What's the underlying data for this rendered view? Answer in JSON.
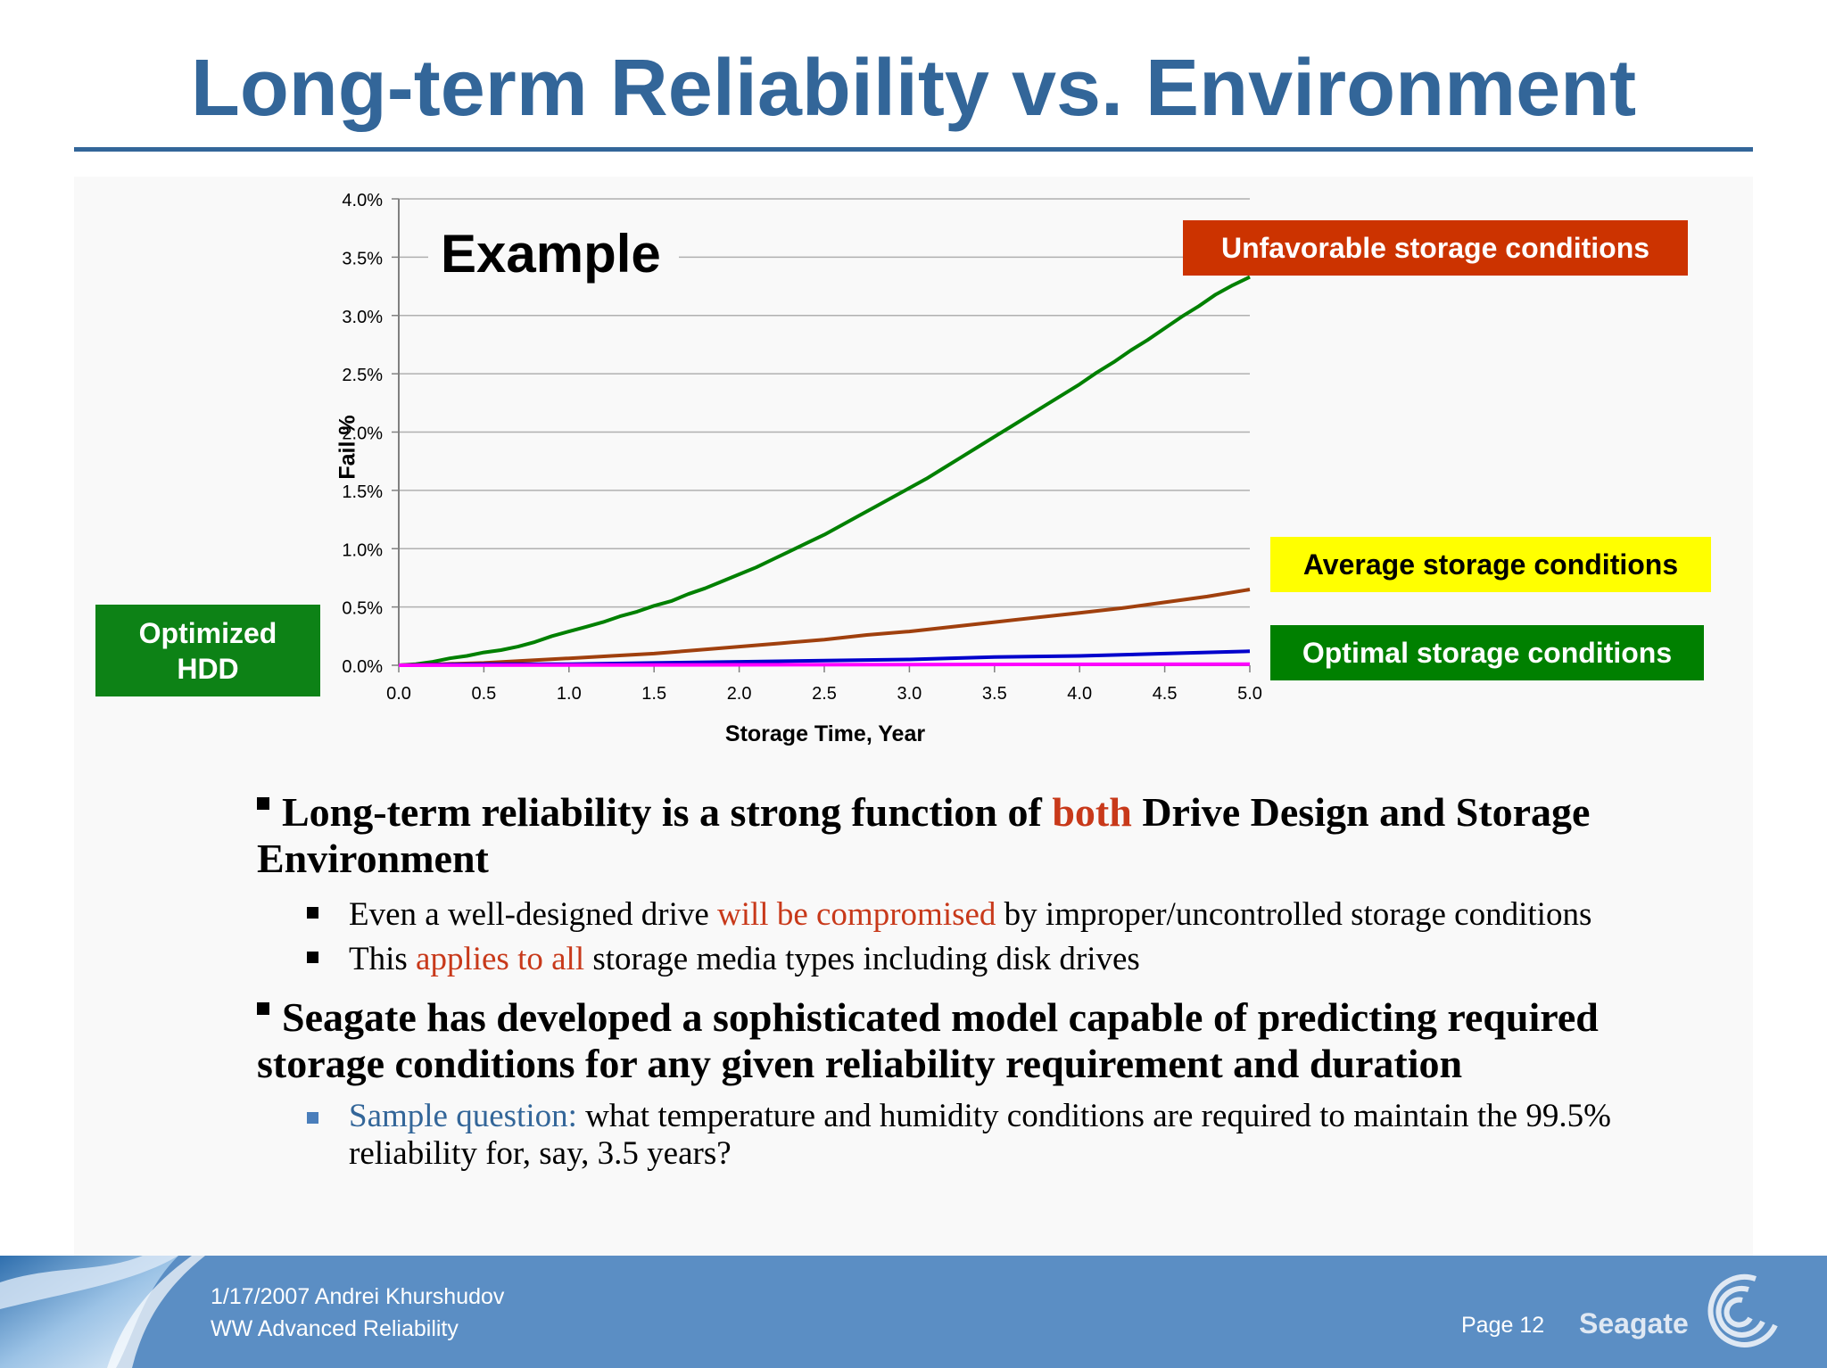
{
  "title": "Long-term Reliability vs. Environment",
  "chart_data": {
    "type": "line",
    "title": "",
    "xlabel": "Storage Time, Year",
    "ylabel": "Fail %",
    "xlim": [
      0,
      5
    ],
    "ylim": [
      0,
      0.04
    ],
    "x_ticks": [
      "0.0",
      "0.5",
      "1.0",
      "1.5",
      "2.0",
      "2.5",
      "3.0",
      "3.5",
      "4.0",
      "4.5",
      "5.0"
    ],
    "y_ticks": [
      "0.0%",
      "0.5%",
      "1.0%",
      "1.5%",
      "2.0%",
      "2.5%",
      "3.0%",
      "3.5%",
      "4.0%"
    ],
    "grid": "horizontal",
    "series": [
      {
        "name": "Unfavorable storage conditions",
        "color": "#008000",
        "x": [
          0,
          0.1,
          0.2,
          0.3,
          0.4,
          0.5,
          0.6,
          0.7,
          0.8,
          0.9,
          1.0,
          1.1,
          1.2,
          1.3,
          1.4,
          1.5,
          1.6,
          1.7,
          1.8,
          1.9,
          2.0,
          2.1,
          2.2,
          2.3,
          2.4,
          2.5,
          2.6,
          2.7,
          2.8,
          2.9,
          3.0,
          3.1,
          3.2,
          3.3,
          3.4,
          3.5,
          3.6,
          3.7,
          3.8,
          3.9,
          4.0,
          4.1,
          4.2,
          4.3,
          4.4,
          4.5,
          4.6,
          4.7,
          4.8,
          4.9,
          5.0
        ],
        "y": [
          0,
          0.0001,
          0.0003,
          0.0006,
          0.0008,
          0.0011,
          0.0013,
          0.0016,
          0.002,
          0.0025,
          0.0029,
          0.0033,
          0.0037,
          0.0042,
          0.0046,
          0.0051,
          0.0055,
          0.0061,
          0.0066,
          0.0072,
          0.0078,
          0.0084,
          0.0091,
          0.0098,
          0.0105,
          0.0112,
          0.012,
          0.0128,
          0.0136,
          0.0144,
          0.0152,
          0.016,
          0.0169,
          0.0178,
          0.0187,
          0.0196,
          0.0205,
          0.0214,
          0.0223,
          0.0232,
          0.0241,
          0.0251,
          0.026,
          0.027,
          0.0279,
          0.0289,
          0.0299,
          0.0308,
          0.0318,
          0.0326,
          0.0333
        ]
      },
      {
        "name": "Average storage conditions",
        "color": "#a0400e",
        "x": [
          0,
          0.25,
          0.5,
          0.75,
          1.0,
          1.25,
          1.5,
          1.75,
          2.0,
          2.25,
          2.5,
          2.75,
          3.0,
          3.25,
          3.5,
          3.75,
          4.0,
          4.25,
          4.5,
          4.75,
          5.0
        ],
        "y": [
          0,
          0.0001,
          0.0002,
          0.0004,
          0.0006,
          0.0008,
          0.001,
          0.0013,
          0.0016,
          0.0019,
          0.0022,
          0.0026,
          0.0029,
          0.0033,
          0.0037,
          0.0041,
          0.0045,
          0.0049,
          0.0054,
          0.0059,
          0.0065
        ]
      },
      {
        "name": "Optimal storage conditions",
        "color": "#0000cc",
        "x": [
          0,
          0.5,
          1.0,
          1.5,
          2.0,
          2.5,
          3.0,
          3.5,
          4.0,
          4.5,
          5.0
        ],
        "y": [
          0,
          0.0001,
          0.0001,
          0.0002,
          0.0003,
          0.0004,
          0.0005,
          0.0007,
          0.0008,
          0.001,
          0.0012
        ]
      },
      {
        "name": "Optimized HDD",
        "color": "#ff00ff",
        "x": [
          0,
          5.0
        ],
        "y": [
          0,
          0.0001
        ]
      }
    ]
  },
  "labels": {
    "example": "Example",
    "unfavorable": "Unfavorable storage conditions",
    "average": "Average storage conditions",
    "optimal": "Optimal storage conditions",
    "optimized_line1": "Optimized",
    "optimized_line2": "HDD"
  },
  "bullets": {
    "b1_pre": "Long-term reliability is a strong function of ",
    "b1_hl": "both",
    "b1_post": " Drive Design and Storage Environment",
    "s1_pre": "Even a well-designed drive ",
    "s1_hl": "will be compromised",
    "s1_post": " by improper/uncontrolled storage conditions",
    "s2_pre": "This ",
    "s2_hl": "applies to all",
    "s2_post": " storage media types including disk drives",
    "b2": "Seagate has developed a sophisticated model capable of predicting required storage conditions for any given reliability requirement and duration",
    "s3_hl": "Sample question:",
    "s3_post": " what temperature and humidity conditions are required to maintain the 99.5% reliability for, say, 3.5 years?"
  },
  "footer": {
    "date_author": "1/17/2007 Andrei Khurshudov",
    "dept": "WW Advanced Reliability",
    "page": "Page 12",
    "logo": "Seagate"
  }
}
